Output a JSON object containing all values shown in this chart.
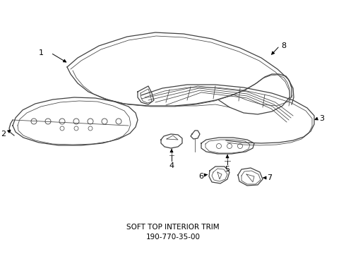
{
  "title": "SOFT TOP INTERIOR TRIM",
  "part_number": "190-770-35-00",
  "background": "#ffffff",
  "line_color": "#404040",
  "text_color": "#000000",
  "lw_main": 0.9,
  "lw_thin": 0.55,
  "lw_thick": 1.1
}
